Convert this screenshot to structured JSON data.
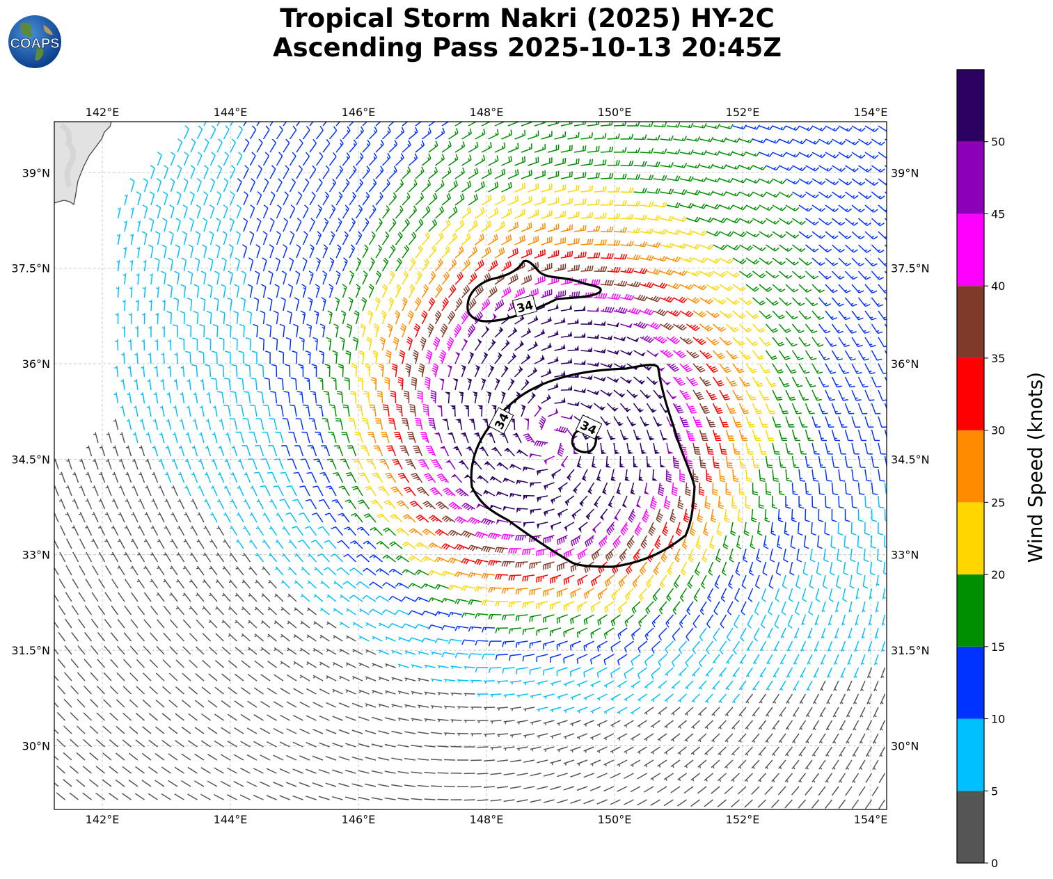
{
  "header": {
    "title_line1": "Tropical Storm Nakri (2025) HY-2C",
    "title_line2": "Ascending Pass 2025-10-13 20:45Z",
    "logo_text": "COAPS"
  },
  "map": {
    "lon_ticks": [
      "142°E",
      "144°E",
      "146°E",
      "148°E",
      "150°E",
      "152°E",
      "154°E"
    ],
    "lat_ticks": [
      "39°N",
      "37.5°N",
      "36°N",
      "34.5°N",
      "33°N",
      "31.5°N",
      "30°N"
    ],
    "lon_range": [
      141.25,
      154.25
    ],
    "lat_range": [
      29.0,
      39.8
    ],
    "storm_center": {
      "lon": 149.0,
      "lat": 34.85
    },
    "contour_label": "34",
    "contour_label_count": 3,
    "barb_colors_note": "barbs colored by colorbar bins"
  },
  "colorbar": {
    "label": "Wind Speed (knots)",
    "ticks": [
      "0",
      "5",
      "10",
      "15",
      "20",
      "25",
      "30",
      "35",
      "40",
      "45",
      "50"
    ],
    "bins": [
      {
        "min": 0,
        "max": 5,
        "color": "#555555"
      },
      {
        "min": 5,
        "max": 10,
        "color": "#00bfff"
      },
      {
        "min": 10,
        "max": 15,
        "color": "#0033ff"
      },
      {
        "min": 15,
        "max": 20,
        "color": "#008f00"
      },
      {
        "min": 20,
        "max": 25,
        "color": "#ffd700"
      },
      {
        "min": 25,
        "max": 30,
        "color": "#ff8c00"
      },
      {
        "min": 30,
        "max": 35,
        "color": "#ff0000"
      },
      {
        "min": 35,
        "max": 40,
        "color": "#7f3a2a"
      },
      {
        "min": 40,
        "max": 45,
        "color": "#ff00ff"
      },
      {
        "min": 45,
        "max": 50,
        "color": "#8b00b8"
      },
      {
        "min": 50,
        "max": 55,
        "color": "#2a0060"
      }
    ]
  }
}
